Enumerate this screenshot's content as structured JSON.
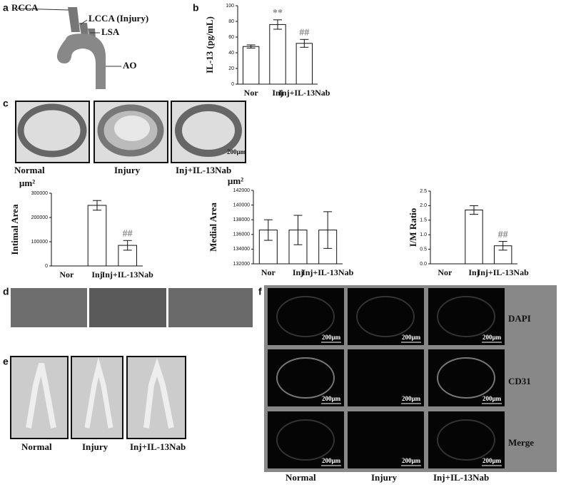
{
  "figure": {
    "panel_labels": [
      "a",
      "b",
      "c",
      "d",
      "e",
      "f"
    ],
    "anatomy_labels": [
      "RCCA",
      "LCCA (Injury)",
      "LSA",
      "AO"
    ],
    "groups": [
      "Normal",
      "Injury",
      "Inj+IL-13Nab"
    ],
    "scale_bar": "200µm",
    "stains": [
      "DAPI",
      "CD31",
      "Merge"
    ]
  },
  "chart_data": [
    {
      "type": "bar",
      "ylabel": "IL-13 (pg/mL)",
      "categories": [
        "Nor",
        "Inj",
        "Inj+IL-13Nab"
      ],
      "values": [
        48,
        76,
        52
      ],
      "errors": [
        2,
        6,
        5
      ],
      "annotations": [
        null,
        "**",
        "##"
      ],
      "ylim": [
        0,
        100
      ],
      "yticks": [
        0,
        20,
        40,
        60,
        80,
        100
      ],
      "color": "#ffffff",
      "annotation_color": "#888888"
    },
    {
      "type": "bar",
      "ylabel": "Intimal Area",
      "unit": "µm²",
      "categories": [
        "Nor",
        "Inj",
        "Inj+IL-13Nab"
      ],
      "values": [
        0,
        250000,
        85000
      ],
      "errors": [
        0,
        20000,
        20000
      ],
      "annotations": [
        null,
        null,
        "##"
      ],
      "ylim": [
        0,
        300000
      ],
      "yticks": [
        0,
        100000,
        200000,
        300000
      ],
      "color": "#ffffff",
      "annotation_color": "#888888"
    },
    {
      "type": "bar",
      "ylabel": "Medial Area",
      "unit": "µm²",
      "categories": [
        "Nor",
        "Inj",
        "Inj+IL-13Nab"
      ],
      "values": [
        136600,
        136600,
        136600
      ],
      "errors": [
        1400,
        2000,
        2500
      ],
      "annotations": [
        null,
        null,
        null
      ],
      "ylim": [
        132000,
        142000
      ],
      "yticks": [
        132000,
        134000,
        136000,
        138000,
        140000,
        142000
      ],
      "color": "#ffffff",
      "annotation_color": "#888888"
    },
    {
      "type": "bar",
      "ylabel": "I/M Ratio",
      "categories": [
        "Nor",
        "Inj",
        "Inj+IL-13Nab"
      ],
      "values": [
        0,
        1.85,
        0.62
      ],
      "errors": [
        0,
        0.15,
        0.15
      ],
      "annotations": [
        null,
        null,
        "##"
      ],
      "ylim": [
        0,
        2.5
      ],
      "yticks": [
        {
          "value": 0,
          "label": "0.0"
        },
        0.5,
        {
          "value": 1,
          "label": "1.0"
        },
        1.5,
        {
          "value": 2,
          "label": "2.0"
        },
        2.5
      ],
      "color": "#ffffff",
      "annotation_color": "#888888"
    }
  ]
}
